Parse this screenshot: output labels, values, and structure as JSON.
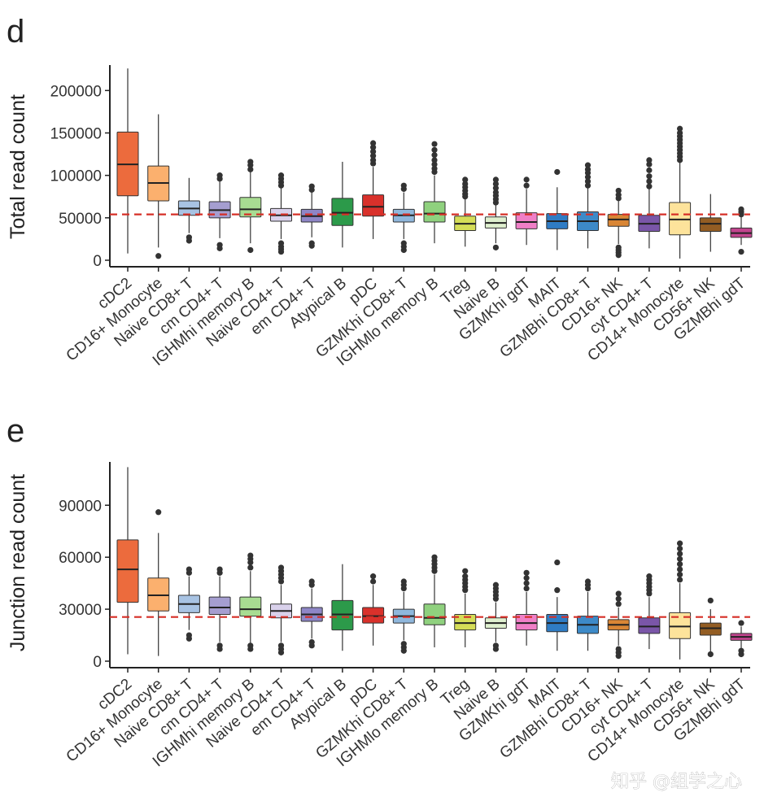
{
  "watermark": "知乎 @组学之心",
  "colors": {
    "axis": "#222222",
    "reference_line": "#d62f27",
    "outlier": "#333333",
    "median": "#222222",
    "whisker": "#333333"
  },
  "chart_data": [
    {
      "panel": "d",
      "type": "box",
      "title": "",
      "xlabel": "",
      "ylabel": "Total read count",
      "ylim": [
        0,
        230000
      ],
      "yticks": [
        0,
        50000,
        100000,
        150000,
        200000
      ],
      "ytick_labels": [
        "0",
        "50000",
        "100000",
        "150000",
        "200000"
      ],
      "reference_line": 54000,
      "grid": false,
      "series": [
        {
          "name": "cDC2",
          "color": "#ec6b3d",
          "whisker_low": 8000,
          "q1": 76000,
          "median": 113000,
          "q3": 151000,
          "whisker_high": 226000,
          "outliers": []
        },
        {
          "name": "CD16+ Monocyte",
          "color": "#fbb06e",
          "whisker_low": 15000,
          "q1": 70000,
          "median": 91000,
          "q3": 111000,
          "whisker_high": 172000,
          "outliers": [
            5000
          ]
        },
        {
          "name": "Naive CD8+ T",
          "color": "#a8c3e3",
          "whisker_low": 32000,
          "q1": 53000,
          "median": 61000,
          "q3": 70000,
          "whisker_high": 97000,
          "outliers": [
            23000,
            27000
          ]
        },
        {
          "name": "cm CD4+ T",
          "color": "#a59ed0",
          "whisker_low": 26000,
          "q1": 50000,
          "median": 59000,
          "q3": 69000,
          "whisker_high": 96000,
          "outliers": [
            14000,
            18000,
            96000,
            100000
          ]
        },
        {
          "name": "IGHMhi memory B",
          "color": "#a8dc92",
          "whisker_low": 20000,
          "q1": 51000,
          "median": 60000,
          "q3": 74000,
          "whisker_high": 107000,
          "outliers": [
            12000,
            107000,
            112000,
            116000
          ]
        },
        {
          "name": "Naive CD4+ T",
          "color": "#d9d1eb",
          "whisker_low": 25000,
          "q1": 46000,
          "median": 53000,
          "q3": 61000,
          "whisker_high": 88000,
          "outliers": [
            10000,
            13000,
            16000,
            20000,
            88000,
            92000,
            96000,
            100000
          ]
        },
        {
          "name": "em CD4+ T",
          "color": "#8e86c6",
          "whisker_low": 27000,
          "q1": 45000,
          "median": 52000,
          "q3": 60000,
          "whisker_high": 80000,
          "outliers": [
            17000,
            20000,
            83000,
            87000
          ]
        },
        {
          "name": "Atypical B",
          "color": "#2c9a4a",
          "whisker_low": 15000,
          "q1": 41000,
          "median": 56000,
          "q3": 73000,
          "whisker_high": 116000,
          "outliers": []
        },
        {
          "name": "pDC",
          "color": "#d9312b",
          "whisker_low": 25000,
          "q1": 52000,
          "median": 63000,
          "q3": 77000,
          "whisker_high": 110000,
          "outliers": [
            114000,
            118000,
            123000,
            128000,
            133000,
            138000
          ]
        },
        {
          "name": "GZMKhi CD8+ T",
          "color": "#8fb7dc",
          "whisker_low": 25000,
          "q1": 45000,
          "median": 53000,
          "q3": 60000,
          "whisker_high": 80000,
          "outliers": [
            12000,
            16000,
            20000,
            84000,
            88000
          ]
        },
        {
          "name": "IGHMlo memory B",
          "color": "#8fd17e",
          "whisker_low": 20000,
          "q1": 45000,
          "median": 55000,
          "q3": 69000,
          "whisker_high": 100000,
          "outliers": [
            104000,
            108000,
            113000,
            118000,
            124000,
            130000,
            137000
          ]
        },
        {
          "name": "Treg",
          "color": "#d5dd57",
          "whisker_low": 16000,
          "q1": 35000,
          "median": 43000,
          "q3": 52000,
          "whisker_high": 72000,
          "outliers": [
            75000,
            78000,
            82000,
            86000,
            90000,
            95000
          ]
        },
        {
          "name": "Naive B",
          "color": "#dff0cf",
          "whisker_low": 20000,
          "q1": 38000,
          "median": 44000,
          "q3": 51000,
          "whisker_high": 65000,
          "outliers": [
            15000,
            68000,
            72000,
            76000,
            80000,
            85000,
            90000,
            95000
          ]
        },
        {
          "name": "GZMKhi gdT",
          "color": "#f07fc7",
          "whisker_low": 18000,
          "q1": 37000,
          "median": 45000,
          "q3": 56000,
          "whisker_high": 84000,
          "outliers": [
            88000,
            95000
          ]
        },
        {
          "name": "MAIT",
          "color": "#2f7cc4",
          "whisker_low": 12000,
          "q1": 37000,
          "median": 46000,
          "q3": 55000,
          "whisker_high": 86000,
          "outliers": [
            104000
          ]
        },
        {
          "name": "GZMBhi CD8+ T",
          "color": "#3d8ac8",
          "whisker_low": 14000,
          "q1": 35000,
          "median": 46000,
          "q3": 57000,
          "whisker_high": 86000,
          "outliers": [
            88000,
            93000,
            98000,
            103000,
            107000,
            112000
          ]
        },
        {
          "name": "CD16+ NK",
          "color": "#d98635",
          "whisker_low": 19000,
          "q1": 40000,
          "median": 48000,
          "q3": 54000,
          "whisker_high": 70000,
          "outliers": [
            6000,
            9000,
            12000,
            15000,
            73000,
            77000,
            82000
          ]
        },
        {
          "name": "cyt CD4+ T",
          "color": "#7a56a8",
          "whisker_low": 14000,
          "q1": 34000,
          "median": 43000,
          "q3": 53000,
          "whisker_high": 85000,
          "outliers": [
            87000,
            93000,
            99000,
            106000,
            113000,
            118000
          ]
        },
        {
          "name": "CD14+ Monocyte",
          "color": "#fde39b",
          "whisker_low": 2000,
          "q1": 30000,
          "median": 48000,
          "q3": 68000,
          "whisker_high": 115000,
          "outliers": [
            118000,
            122000,
            126000,
            130000,
            134000,
            138000,
            142000,
            146000,
            150000,
            155000
          ]
        },
        {
          "name": "CD56+ NK",
          "color": "#935d23",
          "whisker_low": 10000,
          "q1": 34000,
          "median": 43000,
          "q3": 50000,
          "whisker_high": 78000,
          "outliers": []
        },
        {
          "name": "GZMBhi gdT",
          "color": "#c2448e",
          "whisker_low": 18000,
          "q1": 27000,
          "median": 32000,
          "q3": 38000,
          "whisker_high": 52000,
          "outliers": [
            10000,
            54000,
            57000,
            60000
          ]
        }
      ]
    },
    {
      "panel": "e",
      "type": "box",
      "title": "",
      "xlabel": "",
      "ylabel": "Junction read count",
      "ylim": [
        0,
        115000
      ],
      "yticks": [
        0,
        30000,
        60000,
        90000
      ],
      "ytick_labels": [
        "0",
        "30000",
        "60000",
        "90000"
      ],
      "reference_line": 25500,
      "grid": false,
      "series": [
        {
          "name": "cDC2",
          "color": "#ec6b3d",
          "whisker_low": 4000,
          "q1": 34000,
          "median": 53000,
          "q3": 70000,
          "whisker_high": 112000,
          "outliers": []
        },
        {
          "name": "CD16+ Monocyte",
          "color": "#fbb06e",
          "whisker_low": 3000,
          "q1": 29000,
          "median": 38000,
          "q3": 48000,
          "whisker_high": 74000,
          "outliers": [
            86000
          ]
        },
        {
          "name": "Naive CD8+ T",
          "color": "#a8c3e3",
          "whisker_low": 18000,
          "q1": 28000,
          "median": 33000,
          "q3": 38000,
          "whisker_high": 49000,
          "outliers": [
            13000,
            15000,
            51000,
            53000
          ]
        },
        {
          "name": "cm CD4+ T",
          "color": "#a59ed0",
          "whisker_low": 11000,
          "q1": 27000,
          "median": 31000,
          "q3": 37000,
          "whisker_high": 49000,
          "outliers": [
            7000,
            9000,
            51000,
            53000
          ]
        },
        {
          "name": "IGHMhi memory B",
          "color": "#a8dc92",
          "whisker_low": 10000,
          "q1": 26000,
          "median": 30000,
          "q3": 37000,
          "whisker_high": 52000,
          "outliers": [
            7000,
            9000,
            54000,
            57000,
            59000,
            61000
          ]
        },
        {
          "name": "Naive CD4+ T",
          "color": "#d9d1eb",
          "whisker_low": 11000,
          "q1": 25000,
          "median": 29000,
          "q3": 33000,
          "whisker_high": 44000,
          "outliers": [
            5000,
            7000,
            9000,
            46000,
            48000,
            50000,
            52000,
            54000
          ]
        },
        {
          "name": "em CD4+ T",
          "color": "#8e86c6",
          "whisker_low": 13000,
          "q1": 23000,
          "median": 27000,
          "q3": 31000,
          "whisker_high": 42000,
          "outliers": [
            9000,
            11000,
            44000,
            46000
          ]
        },
        {
          "name": "Atypical B",
          "color": "#2c9a4a",
          "whisker_low": 6000,
          "q1": 18000,
          "median": 27000,
          "q3": 35000,
          "whisker_high": 56000,
          "outliers": []
        },
        {
          "name": "pDC",
          "color": "#d9312b",
          "whisker_low": 9000,
          "q1": 22000,
          "median": 26000,
          "q3": 31000,
          "whisker_high": 44000,
          "outliers": [
            46000,
            49000
          ]
        },
        {
          "name": "GZMKhi CD8+ T",
          "color": "#8fb7dc",
          "whisker_low": 12000,
          "q1": 22000,
          "median": 26000,
          "q3": 30000,
          "whisker_high": 40000,
          "outliers": [
            6000,
            8000,
            10000,
            42000,
            44000,
            46000
          ]
        },
        {
          "name": "IGHMlo memory B",
          "color": "#8fd17e",
          "whisker_low": 8000,
          "q1": 21000,
          "median": 25000,
          "q3": 33000,
          "whisker_high": 50000,
          "outliers": [
            52000,
            54000,
            56000,
            58000,
            60000
          ]
        },
        {
          "name": "Treg",
          "color": "#d5dd57",
          "whisker_low": 8000,
          "q1": 18000,
          "median": 22000,
          "q3": 27000,
          "whisker_high": 39000,
          "outliers": [
            41000,
            43000,
            45000,
            47000,
            49000,
            52000
          ]
        },
        {
          "name": "Naive B",
          "color": "#dff0cf",
          "whisker_low": 11000,
          "q1": 19000,
          "median": 22000,
          "q3": 25000,
          "whisker_high": 34000,
          "outliers": [
            7000,
            9000,
            36000,
            38000,
            40000,
            42000,
            44000
          ]
        },
        {
          "name": "GZMKhi gdT",
          "color": "#f07fc7",
          "whisker_low": 9000,
          "q1": 18000,
          "median": 22000,
          "q3": 27000,
          "whisker_high": 40000,
          "outliers": [
            42000,
            45000,
            48000,
            51000
          ]
        },
        {
          "name": "MAIT",
          "color": "#2f7cc4",
          "whisker_low": 6000,
          "q1": 17000,
          "median": 22000,
          "q3": 27000,
          "whisker_high": 37000,
          "outliers": [
            41000,
            57000
          ]
        },
        {
          "name": "GZMBhi CD8+ T",
          "color": "#3d8ac8",
          "whisker_low": 6000,
          "q1": 16000,
          "median": 21000,
          "q3": 26000,
          "whisker_high": 40000,
          "outliers": [
            42000,
            44000,
            46000
          ]
        },
        {
          "name": "CD16+ NK",
          "color": "#d98635",
          "whisker_low": 9000,
          "q1": 18000,
          "median": 21000,
          "q3": 24000,
          "whisker_high": 31000,
          "outliers": [
            3000,
            5000,
            7000,
            33000,
            36000,
            39000
          ]
        },
        {
          "name": "cyt CD4+ T",
          "color": "#7a56a8",
          "whisker_low": 7000,
          "q1": 16000,
          "median": 20000,
          "q3": 25000,
          "whisker_high": 37000,
          "outliers": [
            39000,
            41000,
            43000,
            45000,
            47000,
            49000
          ]
        },
        {
          "name": "CD14+ Monocyte",
          "color": "#fde39b",
          "whisker_low": 1000,
          "q1": 13000,
          "median": 20000,
          "q3": 28000,
          "whisker_high": 45000,
          "outliers": [
            47000,
            50000,
            53000,
            56000,
            59000,
            62000,
            65000,
            68000
          ]
        },
        {
          "name": "CD56+ NK",
          "color": "#935d23",
          "whisker_low": 5000,
          "q1": 15000,
          "median": 19000,
          "q3": 22000,
          "whisker_high": 30000,
          "outliers": [
            4000,
            35000
          ]
        },
        {
          "name": "GZMBhi gdT",
          "color": "#c2448e",
          "whisker_low": 7000,
          "q1": 12000,
          "median": 14000,
          "q3": 16000,
          "whisker_high": 20000,
          "outliers": [
            4000,
            6000,
            22000
          ]
        }
      ]
    }
  ]
}
